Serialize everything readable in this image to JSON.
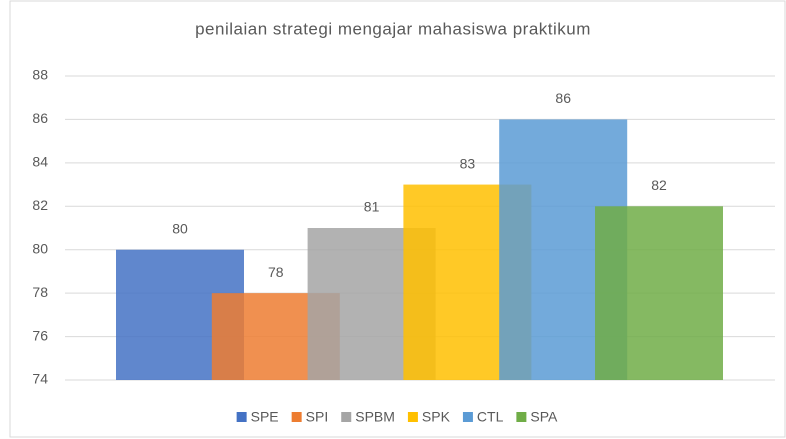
{
  "chart_data": {
    "type": "bar",
    "title": "penilaian strategi mengajar mahasiswa praktikum",
    "series": [
      {
        "name": "SPE",
        "color": "#4472c4",
        "values": [
          80
        ]
      },
      {
        "name": "SPI",
        "color": "#ed7d31",
        "values": [
          78
        ]
      },
      {
        "name": "SPBM",
        "color": "#a5a5a5",
        "values": [
          81
        ]
      },
      {
        "name": "SPK",
        "color": "#ffc000",
        "values": [
          83
        ]
      },
      {
        "name": "CTL",
        "color": "#5b9bd5",
        "values": [
          86
        ]
      },
      {
        "name": "SPA",
        "color": "#70ad47",
        "values": [
          82
        ]
      }
    ],
    "ylim": [
      74,
      88
    ],
    "yticks": [
      74,
      76,
      78,
      80,
      82,
      84,
      86,
      88
    ],
    "grid": true,
    "legend": "bottom"
  }
}
